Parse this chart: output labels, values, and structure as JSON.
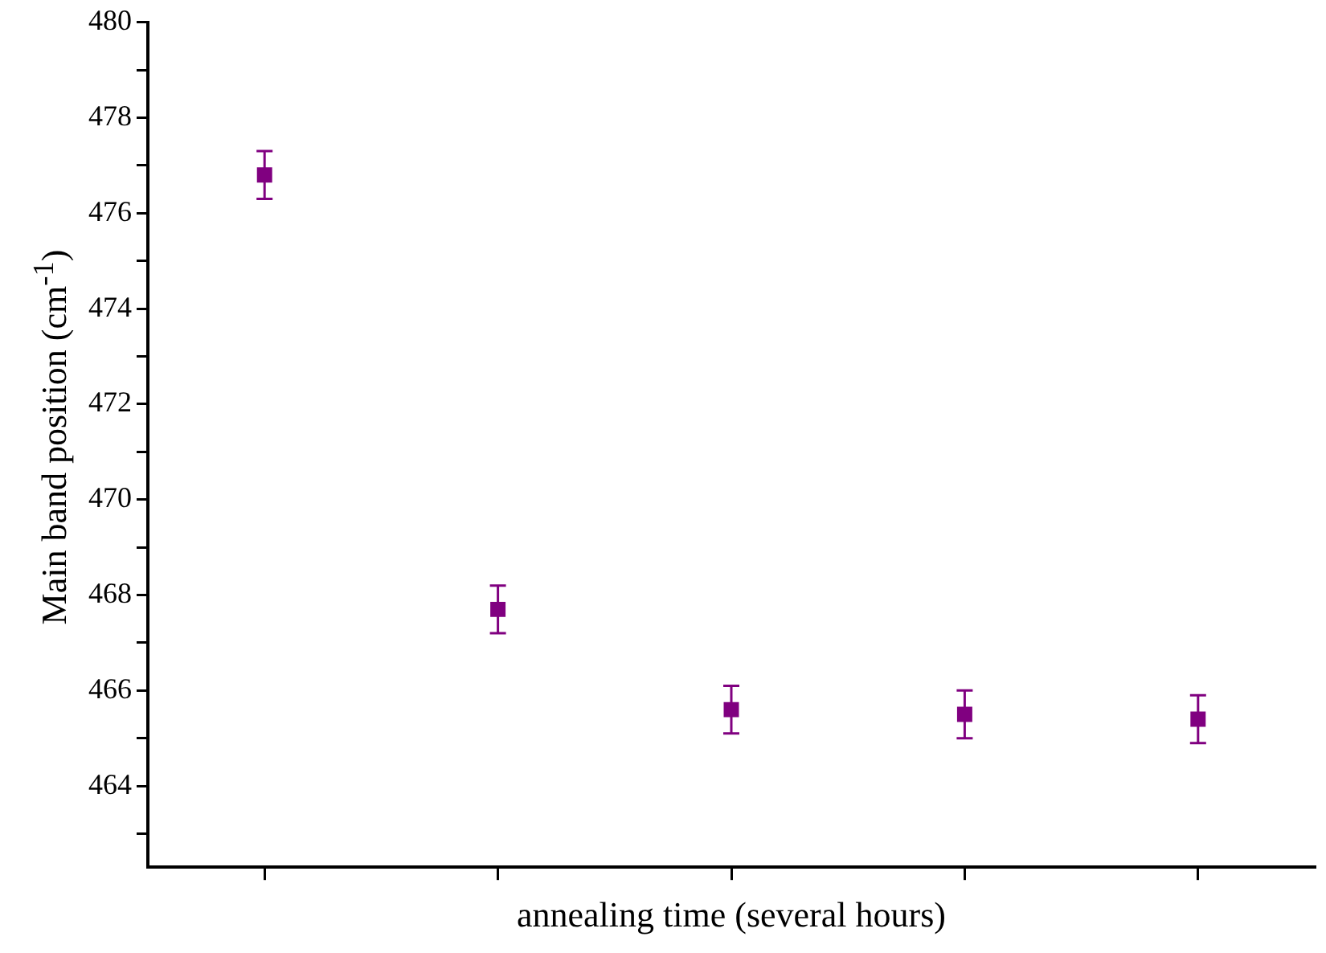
{
  "chart_data": {
    "type": "scatter",
    "xlabel": "annealing time (several hours)",
    "ylabel": "Main band position (cm$^{-1}$)",
    "categories": [
      null,
      null,
      null,
      null,
      null
    ],
    "series": [
      {
        "color": "#800080",
        "values": [
          476.8,
          467.7,
          465.6,
          465.5,
          465.4
        ],
        "errors": [
          0.5,
          0.5,
          0.5,
          0.5,
          0.5
        ]
      }
    ],
    "ylim": [
      462.3,
      480
    ],
    "yticks": [
      {
        "value": 463,
        "label": null
      },
      464,
      {
        "value": 465,
        "label": null
      },
      466,
      {
        "value": 467,
        "label": null
      },
      468,
      {
        "value": 469,
        "label": null
      },
      470,
      {
        "value": 471,
        "label": null
      },
      472,
      {
        "value": 473,
        "label": null
      },
      474,
      {
        "value": 475,
        "label": null
      },
      476,
      {
        "value": 477,
        "label": null
      },
      478,
      {
        "value": 479,
        "label": null
      },
      480
    ],
    "tick_labels": "y",
    "marker": "square",
    "grid": false,
    "legend": false
  }
}
